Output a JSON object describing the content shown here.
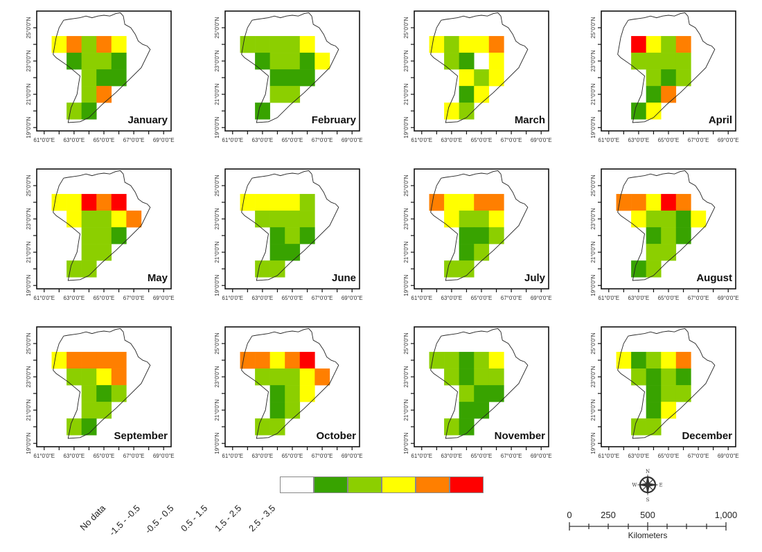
{
  "figure": {
    "type": "choropleth-grid-maps",
    "x_ticks": [
      "61°0'0\"E",
      "63°0'0\"E",
      "65°0'0\"E",
      "67°0'0\"E",
      "69°0'0\"E"
    ],
    "y_ticks": [
      "19°0'0\"N",
      "21°0'0\"N",
      "23°0'0\"N",
      "25°0'0\"N"
    ]
  },
  "chart_data": {
    "type": "heatmap",
    "grid": {
      "lon_min": 61.5,
      "lat_max": 24.5,
      "cell_deg": 1,
      "cols": 7,
      "rows": 6
    },
    "xlim": [
      60.5,
      69.5
    ],
    "ylim": [
      18.8,
      26.0
    ],
    "class_codes": {
      "0": "No data",
      "1": "-1.5 - -0.5",
      "2": "-0.5 - 0.5",
      "3": "0.5 - 1.5",
      "4": "1.5 - 2.5",
      "5": "2.5 - 3.5"
    },
    "months": [
      {
        "name": "January",
        "cells": [
          [
            3,
            4,
            2,
            4,
            3,
            0,
            0
          ],
          [
            0,
            1,
            2,
            2,
            1,
            0,
            0
          ],
          [
            0,
            0,
            2,
            1,
            1,
            0,
            0
          ],
          [
            0,
            0,
            2,
            4,
            0,
            0,
            0
          ],
          [
            0,
            2,
            1,
            0,
            0,
            0,
            0
          ],
          [
            0,
            0,
            0,
            0,
            0,
            0,
            0
          ]
        ]
      },
      {
        "name": "February",
        "cells": [
          [
            2,
            2,
            2,
            2,
            3,
            0,
            0
          ],
          [
            0,
            1,
            2,
            2,
            1,
            3,
            0
          ],
          [
            0,
            0,
            1,
            1,
            1,
            0,
            0
          ],
          [
            0,
            0,
            2,
            2,
            0,
            0,
            0
          ],
          [
            0,
            1,
            0,
            0,
            0,
            0,
            0
          ],
          [
            0,
            0,
            0,
            0,
            0,
            0,
            0
          ]
        ]
      },
      {
        "name": "March",
        "cells": [
          [
            3,
            2,
            3,
            3,
            4,
            0,
            0
          ],
          [
            0,
            2,
            1,
            0,
            3,
            0,
            0
          ],
          [
            0,
            0,
            3,
            2,
            3,
            0,
            0
          ],
          [
            0,
            0,
            1,
            3,
            0,
            0,
            0
          ],
          [
            0,
            3,
            2,
            0,
            0,
            0,
            0
          ],
          [
            0,
            0,
            0,
            0,
            0,
            0,
            0
          ]
        ]
      },
      {
        "name": "April",
        "cells": [
          [
            0,
            5,
            3,
            2,
            4,
            0,
            0
          ],
          [
            0,
            2,
            2,
            2,
            2,
            0,
            0
          ],
          [
            0,
            0,
            2,
            1,
            2,
            0,
            0
          ],
          [
            0,
            0,
            1,
            4,
            0,
            0,
            0
          ],
          [
            0,
            1,
            3,
            0,
            0,
            0,
            0
          ],
          [
            0,
            0,
            0,
            0,
            0,
            0,
            0
          ]
        ]
      },
      {
        "name": "May",
        "cells": [
          [
            3,
            3,
            5,
            4,
            5,
            0,
            0
          ],
          [
            0,
            3,
            2,
            2,
            3,
            4,
            0
          ],
          [
            0,
            0,
            2,
            2,
            1,
            0,
            0
          ],
          [
            0,
            0,
            2,
            2,
            0,
            0,
            0
          ],
          [
            0,
            2,
            2,
            0,
            0,
            0,
            0
          ],
          [
            0,
            0,
            0,
            0,
            0,
            0,
            0
          ]
        ]
      },
      {
        "name": "June",
        "cells": [
          [
            3,
            3,
            3,
            3,
            2,
            0,
            0
          ],
          [
            0,
            2,
            2,
            2,
            2,
            0,
            0
          ],
          [
            0,
            0,
            1,
            2,
            1,
            0,
            0
          ],
          [
            0,
            0,
            1,
            1,
            0,
            0,
            0
          ],
          [
            0,
            2,
            2,
            0,
            0,
            0,
            0
          ],
          [
            0,
            0,
            0,
            0,
            0,
            0,
            0
          ]
        ]
      },
      {
        "name": "July",
        "cells": [
          [
            4,
            3,
            3,
            4,
            4,
            0,
            0
          ],
          [
            0,
            3,
            2,
            2,
            3,
            0,
            0
          ],
          [
            0,
            0,
            1,
            1,
            2,
            0,
            0
          ],
          [
            0,
            0,
            1,
            2,
            0,
            0,
            0
          ],
          [
            0,
            2,
            2,
            0,
            0,
            0,
            0
          ],
          [
            0,
            0,
            0,
            0,
            0,
            0,
            0
          ]
        ]
      },
      {
        "name": "August",
        "cells": [
          [
            4,
            4,
            3,
            5,
            4,
            0,
            0
          ],
          [
            0,
            3,
            2,
            2,
            1,
            3,
            0
          ],
          [
            0,
            0,
            1,
            2,
            1,
            0,
            0
          ],
          [
            0,
            0,
            2,
            2,
            0,
            0,
            0
          ],
          [
            0,
            1,
            2,
            0,
            0,
            0,
            0
          ],
          [
            0,
            0,
            0,
            0,
            0,
            0,
            0
          ]
        ]
      },
      {
        "name": "September",
        "cells": [
          [
            3,
            4,
            4,
            4,
            4,
            0,
            0
          ],
          [
            0,
            2,
            2,
            3,
            4,
            0,
            0
          ],
          [
            0,
            0,
            2,
            1,
            2,
            0,
            0
          ],
          [
            0,
            0,
            2,
            2,
            0,
            0,
            0
          ],
          [
            0,
            2,
            1,
            0,
            0,
            0,
            0
          ],
          [
            0,
            0,
            0,
            0,
            0,
            0,
            0
          ]
        ]
      },
      {
        "name": "October",
        "cells": [
          [
            4,
            4,
            3,
            4,
            5,
            0,
            0
          ],
          [
            0,
            2,
            2,
            2,
            3,
            4,
            0
          ],
          [
            0,
            0,
            1,
            2,
            3,
            0,
            0
          ],
          [
            0,
            0,
            1,
            2,
            0,
            0,
            0
          ],
          [
            0,
            2,
            2,
            0,
            0,
            0,
            0
          ],
          [
            0,
            0,
            0,
            0,
            0,
            0,
            0
          ]
        ]
      },
      {
        "name": "November",
        "cells": [
          [
            2,
            2,
            1,
            2,
            3,
            0,
            0
          ],
          [
            0,
            2,
            1,
            2,
            2,
            0,
            0
          ],
          [
            0,
            0,
            2,
            1,
            1,
            0,
            0
          ],
          [
            0,
            0,
            1,
            1,
            0,
            0,
            0
          ],
          [
            0,
            2,
            1,
            0,
            0,
            0,
            0
          ],
          [
            0,
            0,
            0,
            0,
            0,
            0,
            0
          ]
        ]
      },
      {
        "name": "December",
        "cells": [
          [
            3,
            1,
            2,
            3,
            4,
            0,
            0
          ],
          [
            0,
            2,
            1,
            2,
            1,
            0,
            0
          ],
          [
            0,
            0,
            1,
            2,
            2,
            0,
            0
          ],
          [
            0,
            0,
            1,
            3,
            0,
            0,
            0
          ],
          [
            0,
            2,
            2,
            0,
            0,
            0,
            0
          ],
          [
            0,
            0,
            0,
            0,
            0,
            0,
            0
          ]
        ]
      }
    ]
  },
  "legend": {
    "items": [
      {
        "label": "No data",
        "color": "#ffffff"
      },
      {
        "label": "-1.5 - -0.5",
        "color": "#38a300"
      },
      {
        "label": "-0.5 - 0.5",
        "color": "#8ccf00"
      },
      {
        "label": "0.5 - 1.5",
        "color": "#ffff00"
      },
      {
        "label": "1.5 - 2.5",
        "color": "#ff7f00"
      },
      {
        "label": "2.5 - 3.5",
        "color": "#ff0000"
      }
    ]
  },
  "scalebar": {
    "labels": [
      "0",
      "250",
      "500",
      "1,000"
    ],
    "unit": "Kilometers"
  },
  "north_arrow": {
    "n": "N",
    "s": "S",
    "e": "E",
    "w": "W"
  }
}
